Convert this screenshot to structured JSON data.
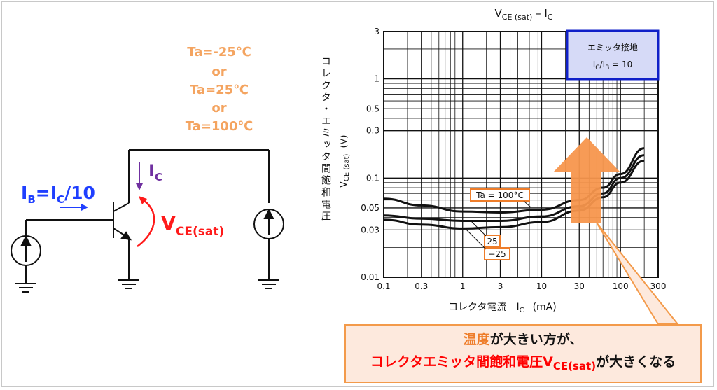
{
  "circuit": {
    "temps": [
      "Ta=-25℃",
      "or",
      "Ta=25℃",
      "or",
      "Ta=100℃"
    ],
    "ib_label": {
      "main": "I",
      "sub1": "B",
      "mid": "=I",
      "sub2": "C",
      "tail": "/10"
    },
    "ic_label": {
      "main": "I",
      "sub": "C"
    },
    "vce_label": {
      "main": "V",
      "sub": "CE(sat)"
    }
  },
  "chart": {
    "title_main": "V",
    "title_sub": "CE (sat)",
    "title_mid": " – I",
    "title_sub2": "C",
    "ylabel_jp": "コレクタ・エミッタ間飽和電圧",
    "ylabel_sym": "V",
    "ylabel_sub": "CE (sat)",
    "ylabel_unit": "(V)",
    "xlabel_jp": "コレクタ電流",
    "xlabel_sym": "I",
    "xlabel_sub": "C",
    "xlabel_unit": "(mA)",
    "legend_line1": "エミッタ接地",
    "legend_l2_a": "I",
    "legend_l2_b": "C",
    "legend_l2_c": "/I",
    "legend_l2_d": "B",
    "legend_l2_e": " = 10",
    "curve_label_100": "Ta = 100°C",
    "curve_label_25": "25",
    "curve_label_m25": "−25"
  },
  "chart_data": {
    "type": "line",
    "x_scale": "log",
    "y_scale": "log",
    "xlim": [
      0.1,
      300
    ],
    "ylim": [
      0.01,
      3
    ],
    "x_ticks": [
      "0.1",
      "0.3",
      "1",
      "3",
      "10",
      "30",
      "100",
      "300"
    ],
    "x_tick_values": [
      0.1,
      0.3,
      1,
      3,
      10,
      30,
      100,
      300
    ],
    "y_ticks": [
      "0.01",
      "0.03",
      "0.05",
      "0.1",
      "0.3",
      "0.5",
      "1",
      "3"
    ],
    "y_tick_values": [
      0.01,
      0.03,
      0.05,
      0.1,
      0.3,
      0.5,
      1,
      3
    ],
    "grid": true,
    "series": [
      {
        "name": "Ta = 100°C",
        "x": [
          0.1,
          0.3,
          1,
          3,
          10,
          30,
          60,
          100,
          200
        ],
        "y": [
          0.062,
          0.053,
          0.046,
          0.045,
          0.048,
          0.06,
          0.08,
          0.11,
          0.2
        ]
      },
      {
        "name": "25",
        "x": [
          0.1,
          0.3,
          1,
          3,
          10,
          30,
          60,
          100,
          200
        ],
        "y": [
          0.042,
          0.039,
          0.037,
          0.037,
          0.041,
          0.052,
          0.07,
          0.1,
          0.17
        ]
      },
      {
        "name": "−25",
        "x": [
          0.1,
          0.3,
          1,
          3,
          10,
          30,
          60,
          100,
          200
        ],
        "y": [
          0.038,
          0.034,
          0.031,
          0.032,
          0.036,
          0.047,
          0.064,
          0.09,
          0.15
        ]
      }
    ]
  },
  "callout": {
    "l1_orange": "温度",
    "l1_rest": "が大きい方が、",
    "l2_red": "コレクタエミッタ間飽和電圧V",
    "l2_red_sub": "CE(sat)",
    "l2_rest": "が大きくなる"
  },
  "colors": {
    "blue": "#1f3fff",
    "purple": "#7030a0",
    "red": "#ff1a1a",
    "orange": "#f4a460",
    "arrow_orange": "#f7964d",
    "legend_bg": "#d6daf7",
    "legend_border": "#1020c8"
  }
}
